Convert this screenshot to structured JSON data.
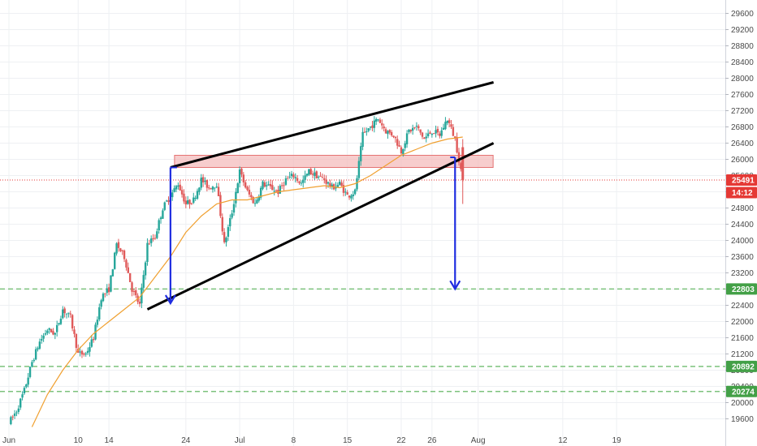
{
  "chart_data": {
    "type": "candlestick",
    "title": "",
    "xlabel": "",
    "ylabel": "",
    "ylim": [
      19350,
      29650
    ],
    "grid": true,
    "x_ticks": [
      {
        "day": 0,
        "label": "Jun"
      },
      {
        "day": 9,
        "label": "10"
      },
      {
        "day": 13,
        "label": "14"
      },
      {
        "day": 23,
        "label": "24"
      },
      {
        "day": 30,
        "label": "Jul"
      },
      {
        "day": 37,
        "label": "8"
      },
      {
        "day": 44,
        "label": "15"
      },
      {
        "day": 51,
        "label": "22"
      },
      {
        "day": 55,
        "label": "26"
      },
      {
        "day": 61,
        "label": "Aug"
      },
      {
        "day": 72,
        "label": "12"
      },
      {
        "day": 79,
        "label": "19"
      }
    ],
    "y_ticks": [
      19600,
      20000,
      20400,
      20800,
      21200,
      21600,
      22000,
      22400,
      22800,
      23200,
      23600,
      24000,
      24400,
      24800,
      25200,
      25600,
      26000,
      26400,
      26800,
      27200,
      27600,
      28000,
      28400,
      28800,
      29200,
      29600
    ],
    "price_path": [
      [
        0,
        19500
      ],
      [
        1,
        19800
      ],
      [
        2,
        20300
      ],
      [
        3,
        21000
      ],
      [
        4,
        21500
      ],
      [
        5,
        21800
      ],
      [
        6,
        21700
      ],
      [
        7,
        22300
      ],
      [
        8,
        22100
      ],
      [
        9,
        21200
      ],
      [
        10,
        21200
      ],
      [
        11,
        21600
      ],
      [
        12,
        22600
      ],
      [
        13,
        22800
      ],
      [
        14,
        23900
      ],
      [
        15,
        23600
      ],
      [
        16,
        22800
      ],
      [
        17,
        22400
      ],
      [
        18,
        23900
      ],
      [
        19,
        24100
      ],
      [
        20,
        24800
      ],
      [
        21,
        25100
      ],
      [
        22,
        25400
      ],
      [
        23,
        24900
      ],
      [
        24,
        25000
      ],
      [
        25,
        25500
      ],
      [
        26,
        25300
      ],
      [
        27,
        25400
      ],
      [
        28,
        23900
      ],
      [
        29,
        24700
      ],
      [
        30,
        25700
      ],
      [
        31,
        25200
      ],
      [
        32,
        24900
      ],
      [
        33,
        25400
      ],
      [
        34,
        25300
      ],
      [
        35,
        25200
      ],
      [
        36,
        25500
      ],
      [
        37,
        25600
      ],
      [
        38,
        25400
      ],
      [
        39,
        25700
      ],
      [
        40,
        25600
      ],
      [
        41,
        25500
      ],
      [
        42,
        25300
      ],
      [
        43,
        25400
      ],
      [
        44,
        25100
      ],
      [
        45,
        25200
      ],
      [
        46,
        26600
      ],
      [
        47,
        26800
      ],
      [
        48,
        27000
      ],
      [
        49,
        26700
      ],
      [
        50,
        26600
      ],
      [
        51,
        26200
      ],
      [
        52,
        26700
      ],
      [
        53,
        26800
      ],
      [
        54,
        26500
      ],
      [
        55,
        26700
      ],
      [
        56,
        26600
      ],
      [
        57,
        27000
      ],
      [
        58,
        26500
      ],
      [
        59,
        25491
      ]
    ],
    "moving_average": {
      "color": "#f0a030",
      "points": [
        [
          3,
          19400
        ],
        [
          5,
          20200
        ],
        [
          7,
          20800
        ],
        [
          9,
          21300
        ],
        [
          11,
          21700
        ],
        [
          13,
          22000
        ],
        [
          15,
          22300
        ],
        [
          17,
          22600
        ],
        [
          19,
          23100
        ],
        [
          21,
          23600
        ],
        [
          23,
          24200
        ],
        [
          25,
          24600
        ],
        [
          27,
          24900
        ],
        [
          29,
          25000
        ],
        [
          31,
          25000
        ],
        [
          33,
          25100
        ],
        [
          35,
          25200
        ],
        [
          37,
          25250
        ],
        [
          39,
          25300
        ],
        [
          41,
          25350
        ],
        [
          43,
          25300
        ],
        [
          45,
          25400
        ],
        [
          47,
          25600
        ],
        [
          49,
          25850
        ],
        [
          51,
          26100
        ],
        [
          53,
          26250
        ],
        [
          55,
          26400
        ],
        [
          57,
          26500
        ],
        [
          59,
          26550
        ]
      ]
    },
    "annotations": {
      "upper_trendline": {
        "from": [
          21,
          25800
        ],
        "to": [
          63,
          27900
        ]
      },
      "lower_trendline": {
        "from": [
          18,
          22300
        ],
        "to": [
          63,
          26400
        ]
      },
      "resistance_zone": {
        "from_day": 21,
        "to_day": 62,
        "low": 25800,
        "high": 26100
      },
      "last_price_line": 25491,
      "target_levels": [
        22803,
        20892,
        20274
      ],
      "measured_move_up": {
        "day": 21,
        "from": 22450,
        "to": 25800
      },
      "projection_down": {
        "day": 58,
        "from": 26050,
        "to": 22803
      }
    },
    "price_labels": [
      {
        "value": "25491",
        "y": 25491,
        "color": "#e53935"
      },
      {
        "value": "14:12",
        "y": 25180,
        "color": "#e53935"
      },
      {
        "value": "22803",
        "y": 22803,
        "color": "#43a047"
      },
      {
        "value": "20892",
        "y": 20892,
        "color": "#43a047"
      },
      {
        "value": "20274",
        "y": 20274,
        "color": "#43a047"
      }
    ],
    "colors": {
      "up": "#26a69a",
      "down": "#e05a5a",
      "trendline": "#000000",
      "arrow": "#1f2de0",
      "zone": "#f4b8b8",
      "target": "#7cc27c",
      "grid": "#eef0f3",
      "axis_text": "#4a4a4a"
    }
  }
}
